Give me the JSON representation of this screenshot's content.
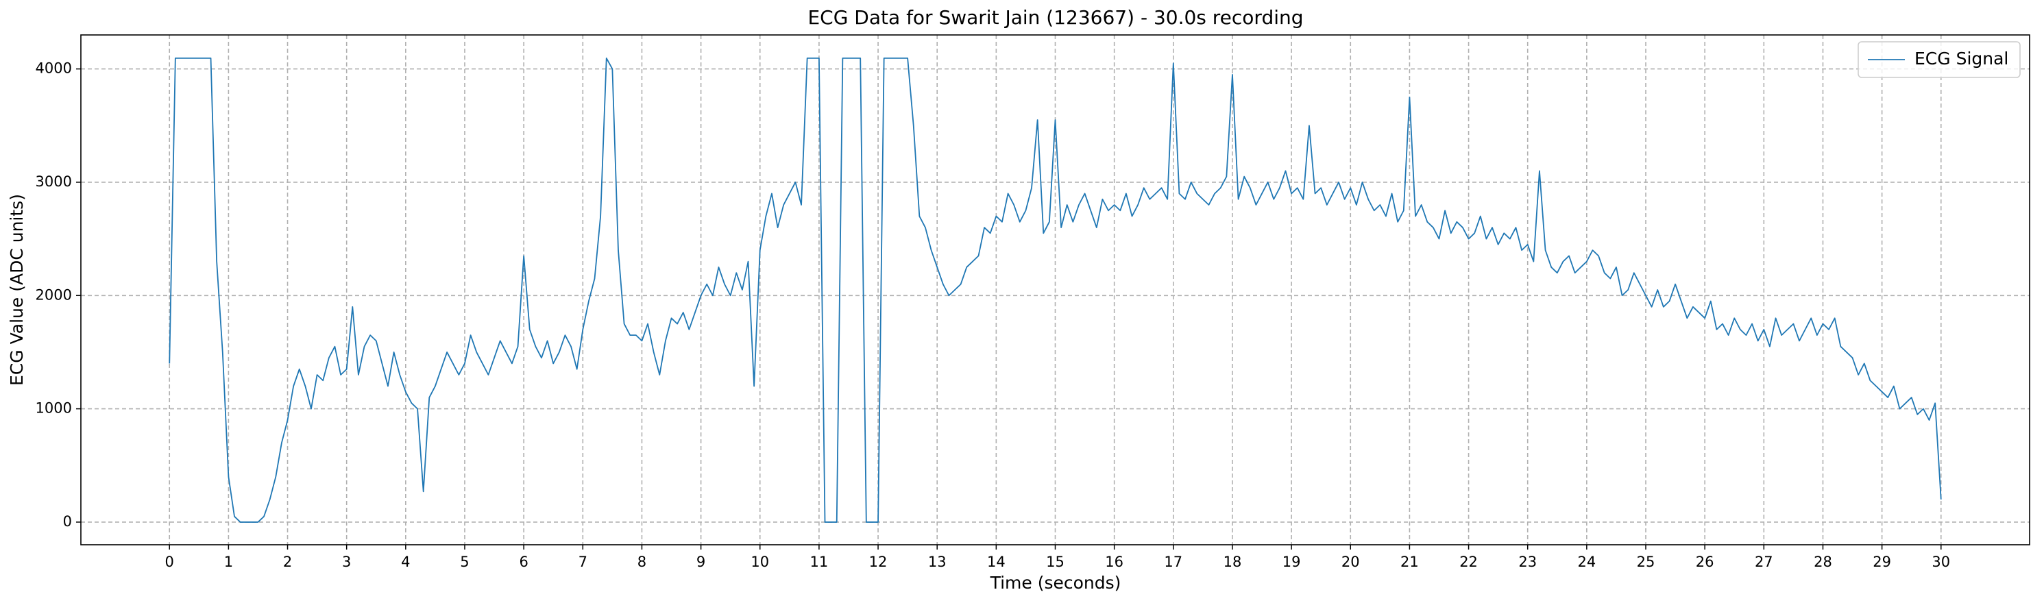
{
  "chart_data": {
    "type": "line",
    "title": "ECG Data for Swarit Jain (123667) - 30.0s recording",
    "xlabel": "Time (seconds)",
    "ylabel": "ECG Value (ADC units)",
    "xlim": [
      -1.5,
      31.5
    ],
    "ylim": [
      -200,
      4300
    ],
    "xticks": [
      0,
      1,
      2,
      3,
      4,
      5,
      6,
      7,
      8,
      9,
      10,
      11,
      12,
      13,
      14,
      15,
      16,
      17,
      18,
      19,
      20,
      21,
      22,
      23,
      24,
      25,
      26,
      27,
      28,
      29,
      30
    ],
    "yticks": [
      0,
      1000,
      2000,
      3000,
      4000
    ],
    "grid": true,
    "legend": "upper right",
    "x": [
      0,
      0.1,
      0.2,
      0.3,
      0.4,
      0.5,
      0.6,
      0.7,
      0.8,
      0.9,
      1,
      1.1,
      1.2,
      1.3,
      1.4,
      1.5,
      1.6,
      1.7,
      1.8,
      1.9,
      2,
      2.1,
      2.2,
      2.3,
      2.4,
      2.5,
      2.6,
      2.7,
      2.8,
      2.9,
      3,
      3.1,
      3.2,
      3.3,
      3.4,
      3.5,
      3.6,
      3.7,
      3.8,
      3.9,
      4,
      4.1,
      4.2,
      4.3,
      4.4,
      4.5,
      4.6,
      4.7,
      4.8,
      4.9,
      5,
      5.1,
      5.2,
      5.3,
      5.4,
      5.5,
      5.6,
      5.7,
      5.8,
      5.9,
      6,
      6.1,
      6.2,
      6.3,
      6.4,
      6.5,
      6.6,
      6.7,
      6.8,
      6.9,
      7,
      7.1,
      7.2,
      7.3,
      7.4,
      7.5,
      7.6,
      7.7,
      7.8,
      7.9,
      8,
      8.1,
      8.2,
      8.3,
      8.4,
      8.5,
      8.6,
      8.7,
      8.8,
      8.9,
      9,
      9.1,
      9.2,
      9.3,
      9.4,
      9.5,
      9.6,
      9.7,
      9.8,
      9.9,
      10,
      10.1,
      10.2,
      10.3,
      10.4,
      10.5,
      10.6,
      10.7,
      10.8,
      10.9,
      11,
      11.1,
      11.2,
      11.3,
      11.4,
      11.5,
      11.6,
      11.7,
      11.8,
      11.9,
      12,
      12.1,
      12.2,
      12.3,
      12.4,
      12.5,
      12.6,
      12.7,
      12.8,
      12.9,
      13,
      13.1,
      13.2,
      13.3,
      13.4,
      13.5,
      13.6,
      13.7,
      13.8,
      13.9,
      14,
      14.1,
      14.2,
      14.3,
      14.4,
      14.5,
      14.6,
      14.7,
      14.8,
      14.9,
      15,
      15.1,
      15.2,
      15.3,
      15.4,
      15.5,
      15.6,
      15.7,
      15.8,
      15.9,
      16,
      16.1,
      16.2,
      16.3,
      16.4,
      16.5,
      16.6,
      16.7,
      16.8,
      16.9,
      17,
      17.1,
      17.2,
      17.3,
      17.4,
      17.5,
      17.6,
      17.7,
      17.8,
      17.9,
      18,
      18.1,
      18.2,
      18.3,
      18.4,
      18.5,
      18.6,
      18.7,
      18.8,
      18.9,
      19,
      19.1,
      19.2,
      19.3,
      19.4,
      19.5,
      19.6,
      19.7,
      19.8,
      19.9,
      20,
      20.1,
      20.2,
      20.3,
      20.4,
      20.5,
      20.6,
      20.7,
      20.8,
      20.9,
      21,
      21.1,
      21.2,
      21.3,
      21.4,
      21.5,
      21.6,
      21.7,
      21.8,
      21.9,
      22,
      22.1,
      22.2,
      22.3,
      22.4,
      22.5,
      22.6,
      22.7,
      22.8,
      22.9,
      23,
      23.1,
      23.2,
      23.3,
      23.4,
      23.5,
      23.6,
      23.7,
      23.8,
      23.9,
      24,
      24.1,
      24.2,
      24.3,
      24.4,
      24.5,
      24.6,
      24.7,
      24.8,
      24.9,
      25,
      25.1,
      25.2,
      25.3,
      25.4,
      25.5,
      25.6,
      25.7,
      25.8,
      25.9,
      26,
      26.1,
      26.2,
      26.3,
      26.4,
      26.5,
      26.6,
      26.7,
      26.8,
      26.9,
      27,
      27.1,
      27.2,
      27.3,
      27.4,
      27.5,
      27.6,
      27.7,
      27.8,
      27.9,
      28,
      28.1,
      28.2,
      28.3,
      28.4,
      28.5,
      28.6,
      28.7,
      28.8,
      28.9,
      29,
      29.1,
      29.2,
      29.3,
      29.4,
      29.5,
      29.6,
      29.7,
      29.8,
      29.9,
      30
    ],
    "series": [
      {
        "name": "ECG Signal",
        "color": "#1f77b4",
        "values": [
          1400,
          4095,
          4095,
          4095,
          4095,
          4095,
          4095,
          4095,
          2300,
          1500,
          400,
          50,
          0,
          0,
          0,
          0,
          50,
          200,
          400,
          700,
          900,
          1200,
          1350,
          1200,
          1000,
          1300,
          1250,
          1450,
          1550,
          1300,
          1350,
          1900,
          1300,
          1550,
          1650,
          1600,
          1400,
          1200,
          1500,
          1300,
          1150,
          1050,
          1000,
          270,
          1100,
          1200,
          1350,
          1500,
          1400,
          1300,
          1400,
          1650,
          1500,
          1400,
          1300,
          1450,
          1600,
          1500,
          1400,
          1550,
          2350,
          1700,
          1550,
          1450,
          1600,
          1400,
          1500,
          1650,
          1550,
          1350,
          1700,
          1950,
          2150,
          2700,
          4095,
          4000,
          2400,
          1750,
          1650,
          1650,
          1600,
          1750,
          1500,
          1300,
          1600,
          1800,
          1750,
          1850,
          1700,
          1850,
          2000,
          2100,
          2000,
          2250,
          2100,
          2000,
          2200,
          2050,
          2300,
          1200,
          2400,
          2700,
          2900,
          2600,
          2800,
          2900,
          3000,
          2800,
          4095,
          4095,
          4095,
          0,
          0,
          0,
          4095,
          4095,
          4095,
          4095,
          0,
          0,
          0,
          4095,
          4095,
          4095,
          4095,
          4095,
          3500,
          2700,
          2600,
          2400,
          2250,
          2100,
          2000,
          2050,
          2100,
          2250,
          2300,
          2350,
          2600,
          2550,
          2700,
          2650,
          2900,
          2800,
          2650,
          2750,
          2950,
          3550,
          2550,
          2650,
          3550,
          2600,
          2800,
          2650,
          2800,
          2900,
          2750,
          2600,
          2850,
          2750,
          2800,
          2750,
          2900,
          2700,
          2800,
          2950,
          2850,
          2900,
          2950,
          2850,
          4050,
          2900,
          2850,
          3000,
          2900,
          2850,
          2800,
          2900,
          2950,
          3050,
          3950,
          2850,
          3050,
          2950,
          2800,
          2900,
          3000,
          2850,
          2950,
          3100,
          2900,
          2950,
          2850,
          3500,
          2900,
          2950,
          2800,
          2900,
          3000,
          2850,
          2950,
          2800,
          3000,
          2850,
          2750,
          2800,
          2700,
          2900,
          2650,
          2750,
          3750,
          2700,
          2800,
          2650,
          2600,
          2500,
          2750,
          2550,
          2650,
          2600,
          2500,
          2550,
          2700,
          2500,
          2600,
          2450,
          2550,
          2500,
          2600,
          2400,
          2450,
          2300,
          3100,
          2400,
          2250,
          2200,
          2300,
          2350,
          2200,
          2250,
          2300,
          2400,
          2350,
          2200,
          2150,
          2250,
          2000,
          2050,
          2200,
          2100,
          2000,
          1900,
          2050,
          1900,
          1950,
          2100,
          1950,
          1800,
          1900,
          1850,
          1800,
          1950,
          1700,
          1750,
          1650,
          1800,
          1700,
          1650,
          1750,
          1600,
          1700,
          1550,
          1800,
          1650,
          1700,
          1750,
          1600,
          1700,
          1800,
          1650,
          1750,
          1700,
          1800,
          1550,
          1500,
          1450,
          1300,
          1400,
          1250,
          1200,
          1150,
          1100,
          1200,
          1000,
          1050,
          1100,
          950,
          1000,
          900,
          1050,
          200
        ]
      }
    ]
  }
}
